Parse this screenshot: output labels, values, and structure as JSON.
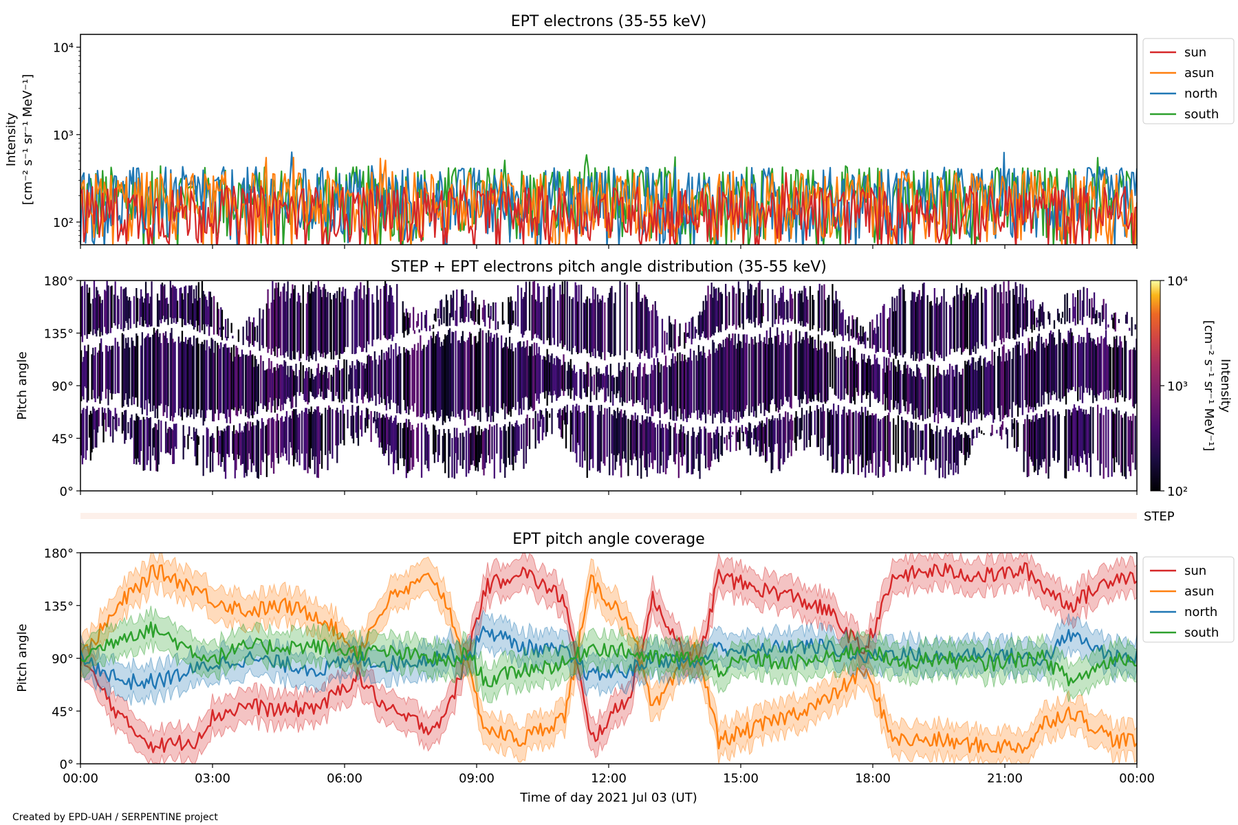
{
  "footer": "Created by EPD-UAH / SERPENTINE project",
  "x_axis": {
    "label": "Time of day 2021 Jul 03 (UT)",
    "ticks": [
      "00:00",
      "03:00",
      "06:00",
      "09:00",
      "12:00",
      "15:00",
      "18:00",
      "21:00",
      "00:00"
    ],
    "range_hours": [
      0,
      24
    ]
  },
  "colors": {
    "sun": "#d62728",
    "asun": "#ff7f0e",
    "north": "#1f77b4",
    "south": "#2ca02c",
    "step_band": "#fdf0ea"
  },
  "chart_data": [
    {
      "type": "line",
      "title": "EPT electrons (35-55 keV)",
      "ylabel_line1": "Intensity",
      "ylabel_line2": "[cm⁻² s⁻¹ sr⁻¹ MeV⁻¹]",
      "yscale": "log",
      "ylim": [
        55,
        14000
      ],
      "yticks": [
        {
          "value": 100,
          "label": "10²"
        },
        {
          "value": 1000,
          "label": "10³"
        },
        {
          "value": 10000,
          "label": "10⁴"
        }
      ],
      "legend": [
        "sun",
        "asun",
        "north",
        "south"
      ],
      "legend_position": "outside-right",
      "series_summary": [
        {
          "name": "sun",
          "typical_range": [
            55,
            250
          ]
        },
        {
          "name": "asun",
          "typical_range": [
            55,
            350
          ]
        },
        {
          "name": "north",
          "typical_range": [
            55,
            400
          ]
        },
        {
          "name": "south",
          "typical_range": [
            55,
            400
          ]
        }
      ]
    },
    {
      "type": "heatmap",
      "title": "STEP + EPT electrons pitch angle distribution (35-55 keV)",
      "ylabel": "Pitch angle",
      "ylim": [
        0,
        180
      ],
      "yticks": [
        "0°",
        "45°",
        "90°",
        "135°",
        "180°"
      ],
      "colorbar": {
        "label_line1": "Intensity",
        "label_line2": "[cm⁻² s⁻¹ sr⁻¹ MeV⁻¹]",
        "scale": "log",
        "range": [
          100,
          10000
        ],
        "ticks": [
          "10²",
          "10³",
          "10⁴"
        ],
        "colormap": "inferno"
      },
      "step_label": "STEP"
    },
    {
      "type": "line",
      "title": "EPT pitch angle coverage",
      "ylabel": "Pitch angle",
      "ylim": [
        0,
        180
      ],
      "yticks": [
        "0°",
        "45°",
        "90°",
        "135°",
        "180°"
      ],
      "legend": [
        "sun",
        "asun",
        "north",
        "south"
      ],
      "legend_position": "outside-right",
      "x_hours": [
        0,
        1,
        1.7,
        2.6,
        3,
        3.8,
        4.6,
        5.5,
        6.3,
        7,
        8,
        8.4,
        8.8,
        9.2,
        10,
        11,
        11.6,
        12.5,
        13,
        14,
        14.5,
        15.3,
        16,
        17,
        17.8,
        18.5,
        19.5,
        20.5,
        21.5,
        21.9,
        22.5,
        23.5,
        24
      ],
      "series": [
        {
          "name": "sun",
          "values": [
            90,
            35,
            15,
            20,
            40,
            50,
            45,
            50,
            75,
            45,
            30,
            50,
            95,
            150,
            165,
            140,
            20,
            60,
            140,
            80,
            160,
            150,
            145,
            130,
            95,
            160,
            165,
            160,
            165,
            150,
            135,
            160,
            160
          ]
        },
        {
          "name": "asun",
          "values": [
            90,
            140,
            165,
            150,
            140,
            130,
            135,
            125,
            95,
            140,
            160,
            130,
            80,
            30,
            20,
            40,
            155,
            120,
            45,
            100,
            20,
            30,
            40,
            55,
            80,
            20,
            20,
            15,
            15,
            35,
            45,
            20,
            20
          ]
        },
        {
          "name": "north",
          "values": [
            90,
            70,
            70,
            80,
            85,
            90,
            85,
            80,
            90,
            85,
            90,
            95,
            90,
            115,
            100,
            95,
            75,
            80,
            90,
            85,
            100,
            95,
            100,
            100,
            90,
            95,
            90,
            95,
            90,
            90,
            110,
            90,
            90
          ]
        },
        {
          "name": "south",
          "values": [
            90,
            110,
            115,
            95,
            90,
            100,
            100,
            100,
            95,
            95,
            90,
            85,
            95,
            70,
            80,
            85,
            100,
            95,
            90,
            90,
            80,
            90,
            85,
            90,
            100,
            85,
            90,
            85,
            90,
            90,
            70,
            90,
            90
          ]
        }
      ]
    }
  ]
}
